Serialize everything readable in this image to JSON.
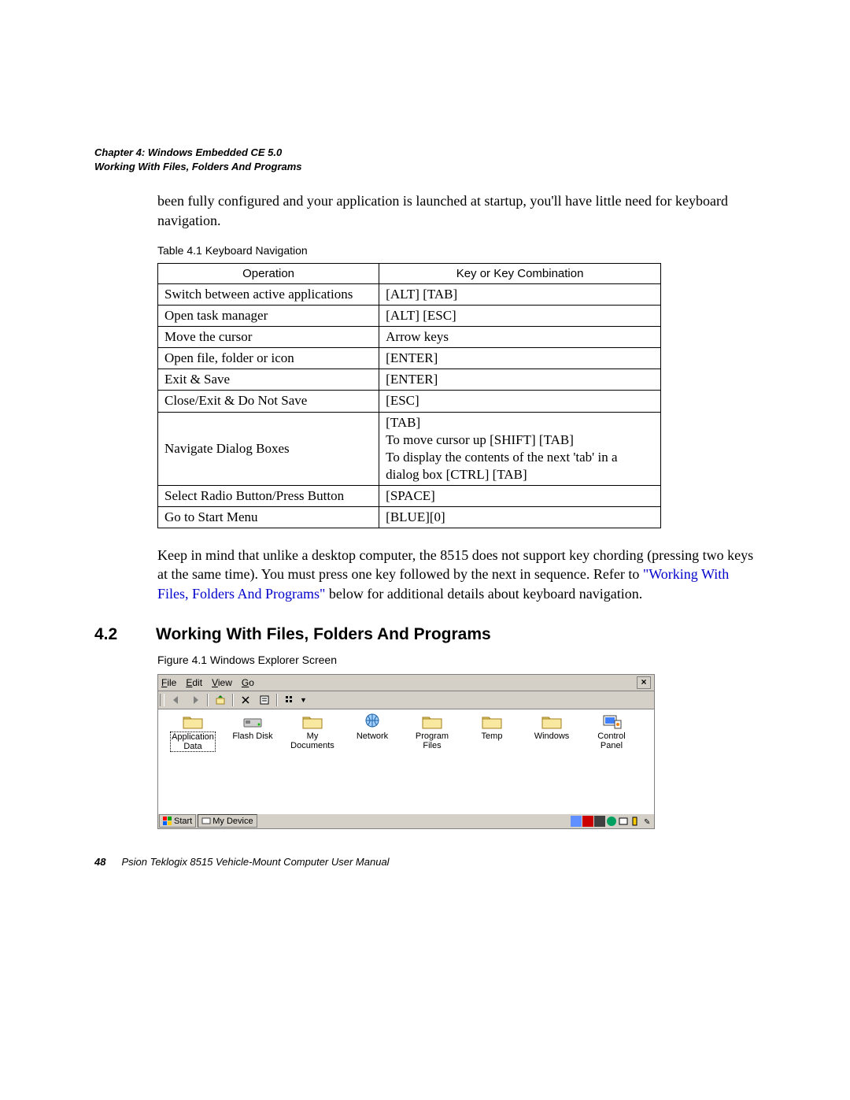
{
  "header": {
    "chapter_line": "Chapter 4: Windows Embedded CE 5.0",
    "section_line": "Working With Files, Folders And Programs"
  },
  "para1": "been fully configured and your application is launched at startup, you'll have little need for keyboard navigation.",
  "table": {
    "caption": "Table 4.1   Keyboard Navigation",
    "head_op": "Operation",
    "head_key": "Key or Key Combination",
    "rows": [
      {
        "op": "Switch between active applications",
        "key": "[ALT] [TAB]"
      },
      {
        "op": "Open task manager",
        "key": "[ALT] [ESC]"
      },
      {
        "op": "Move the cursor",
        "key": "Arrow keys"
      },
      {
        "op": "Open file, folder or icon",
        "key": "[ENTER]"
      },
      {
        "op": "Exit & Save",
        "key": "[ENTER]"
      },
      {
        "op": "Close/Exit & Do Not Save",
        "key": "[ESC]"
      },
      {
        "op": "Navigate Dialog Boxes",
        "key": "[TAB]\nTo move cursor up [SHIFT] [TAB]\nTo display the contents of the next 'tab' in a dialog box [CTRL] [TAB]"
      },
      {
        "op": "Select Radio Button/Press Button",
        "key": "[SPACE]"
      },
      {
        "op": "Go to Start Menu",
        "key": "[BLUE][0]"
      }
    ]
  },
  "para2_a": "Keep in mind that unlike a desktop computer, the 8515 does not support key chording (pressing two keys at the same time). You must press one key followed by the next in sequence. Refer to ",
  "para2_link": "\"Working With Files, Folders And Programs\"",
  "para2_b": " below for additional details about keyboard navigation.",
  "section": {
    "number": "4.2",
    "title": "Working With Files, Folders And Programs"
  },
  "figure_caption": "Figure 4.1  Windows Explorer Screen",
  "explorer": {
    "menu": {
      "file": "File",
      "edit": "Edit",
      "view": "View",
      "go": "Go"
    },
    "folders": [
      {
        "label": "Application Data",
        "type": "folder",
        "selected": true
      },
      {
        "label": "Flash Disk",
        "type": "disk"
      },
      {
        "label": "My Documents",
        "type": "folder"
      },
      {
        "label": "Network",
        "type": "network"
      },
      {
        "label": "Program Files",
        "type": "folder"
      },
      {
        "label": "Temp",
        "type": "folder"
      },
      {
        "label": "Windows",
        "type": "folder"
      },
      {
        "label": "Control Panel",
        "type": "cpanel"
      }
    ],
    "taskbar": {
      "start": "Start",
      "task": "My Device"
    }
  },
  "footer": {
    "page": "48",
    "title": "Psion Teklogix 8515 Vehicle-Mount Computer User Manual"
  },
  "colors": {
    "link": "#0000cc",
    "ui_bg": "#d4d0c8",
    "border": "#808080",
    "folder_fill": "#f8e8a0",
    "folder_stroke": "#a08020"
  }
}
